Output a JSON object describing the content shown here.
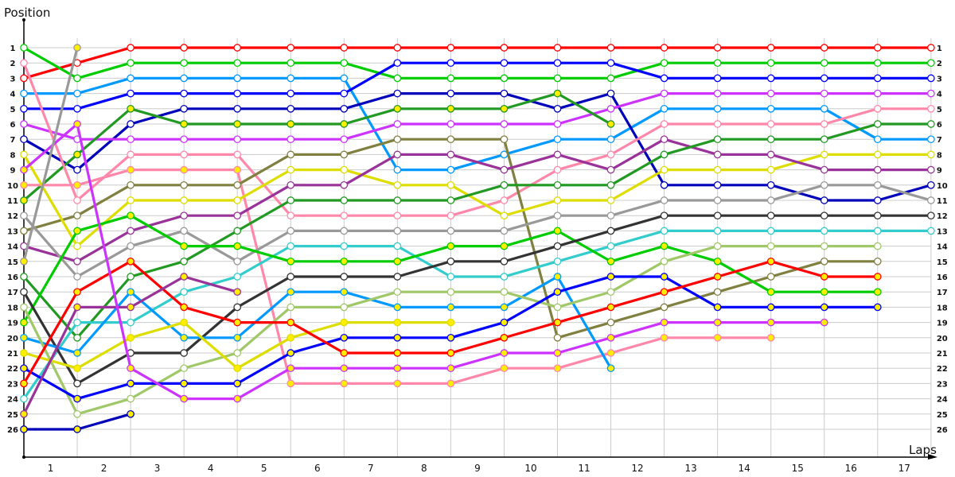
{
  "chart_data": {
    "type": "line",
    "title": "",
    "ylabel": "Position",
    "xlabel": "Laps",
    "x_tick_labels": [
      "1",
      "2",
      "3",
      "4",
      "5",
      "6",
      "7",
      "8",
      "9",
      "10",
      "11",
      "12",
      "13",
      "14",
      "15",
      "16",
      "17"
    ],
    "y_tick_labels": [
      "1",
      "2",
      "3",
      "4",
      "5",
      "6",
      "7",
      "8",
      "9",
      "10",
      "11",
      "12",
      "13",
      "14",
      "15",
      "16",
      "17",
      "18",
      "19",
      "20",
      "21",
      "22",
      "23",
      "24",
      "25",
      "26"
    ],
    "ylim": [
      1,
      26
    ],
    "y_inverted": true,
    "grid": true,
    "legend": "none",
    "x": [
      0,
      1,
      2,
      3,
      4,
      5,
      6,
      7,
      8,
      9,
      10,
      11,
      12,
      13,
      14,
      15,
      16,
      17
    ],
    "series": [
      {
        "name": "red-a",
        "color": "#ff0000",
        "values": [
          3,
          2,
          1,
          1,
          1,
          1,
          1,
          1,
          1,
          1,
          1,
          1,
          1,
          1,
          1,
          1,
          1,
          1
        ],
        "pit": []
      },
      {
        "name": "green-a",
        "color": "#00cc00",
        "values": [
          1,
          3,
          2,
          2,
          2,
          2,
          2,
          3,
          3,
          3,
          3,
          3,
          2,
          2,
          2,
          2,
          2,
          2
        ],
        "pit": []
      },
      {
        "name": "lightblue-a",
        "color": "#0099ff",
        "values": [
          4,
          4,
          3,
          3,
          3,
          3,
          3,
          9,
          9,
          8,
          7,
          7,
          5,
          5,
          5,
          5,
          7,
          7
        ],
        "pit": []
      },
      {
        "name": "blue-a",
        "color": "#0000ff",
        "values": [
          5,
          5,
          4,
          4,
          4,
          4,
          4,
          2,
          2,
          2,
          2,
          2,
          3,
          3,
          3,
          3,
          3,
          3
        ],
        "pit": []
      },
      {
        "name": "navy-a",
        "color": "#0000bb",
        "values": [
          7,
          9,
          6,
          5,
          5,
          5,
          5,
          4,
          4,
          4,
          5,
          4,
          10,
          10,
          10,
          11,
          11,
          10
        ],
        "pit": []
      },
      {
        "name": "violet-a",
        "color": "#cc33ff",
        "values": [
          6,
          7,
          7,
          7,
          7,
          7,
          7,
          6,
          6,
          6,
          6,
          5,
          4,
          4,
          4,
          4,
          4,
          4
        ],
        "pit": []
      },
      {
        "name": "darkgreen-a",
        "color": "#229922",
        "values": [
          11,
          8,
          5,
          6,
          6,
          6,
          6,
          5,
          5,
          5,
          4,
          6,
          null,
          null,
          null,
          null,
          null,
          null
        ],
        "pit": [
          0,
          1,
          2,
          3,
          4,
          5,
          6,
          7,
          8,
          9,
          10,
          11
        ]
      },
      {
        "name": "pink-a",
        "color": "#ff88aa",
        "values": [
          2,
          11,
          8,
          8,
          8,
          12,
          12,
          12,
          12,
          11,
          9,
          8,
          6,
          6,
          6,
          6,
          5,
          5
        ],
        "pit": []
      },
      {
        "name": "pink-b",
        "color": "#ff88aa",
        "values": [
          10,
          10,
          9,
          9,
          9,
          23,
          23,
          23,
          23,
          22,
          22,
          21,
          20,
          20,
          20,
          null,
          null,
          null
        ],
        "pit": [
          0,
          1,
          2,
          3,
          4,
          5,
          6,
          7,
          8,
          9,
          10,
          11,
          12,
          13,
          14
        ]
      },
      {
        "name": "olive",
        "color": "#808040",
        "values": [
          13,
          12,
          10,
          10,
          10,
          8,
          8,
          7,
          7,
          7,
          20,
          19,
          18,
          17,
          16,
          15,
          15,
          null
        ],
        "pit": []
      },
      {
        "name": "yellow-a",
        "color": "#dddd00",
        "values": [
          8,
          14,
          11,
          11,
          11,
          9,
          9,
          10,
          10,
          12,
          11,
          11,
          9,
          9,
          9,
          8,
          8,
          8
        ],
        "pit": []
      },
      {
        "name": "plum-a",
        "color": "#993399",
        "values": [
          14,
          15,
          13,
          12,
          12,
          10,
          10,
          8,
          8,
          9,
          8,
          9,
          7,
          8,
          8,
          9,
          9,
          9
        ],
        "pit": []
      },
      {
        "name": "darkgreen-b",
        "color": "#229922",
        "values": [
          16,
          20,
          16,
          15,
          13,
          11,
          11,
          11,
          11,
          10,
          10,
          10,
          8,
          7,
          7,
          7,
          6,
          6
        ],
        "pit": []
      },
      {
        "name": "gray-a",
        "color": "#999999",
        "values": [
          12,
          16,
          14,
          13,
          15,
          13,
          13,
          13,
          13,
          13,
          12,
          12,
          11,
          11,
          11,
          10,
          10,
          11
        ],
        "pit": []
      },
      {
        "name": "cyan",
        "color": "#33cccc",
        "values": [
          24,
          19,
          19,
          17,
          16,
          14,
          14,
          14,
          16,
          16,
          15,
          14,
          13,
          13,
          13,
          13,
          13,
          13
        ],
        "pit": []
      },
      {
        "name": "green-b",
        "color": "#00cc00",
        "values": [
          19,
          13,
          12,
          14,
          14,
          15,
          15,
          15,
          14,
          14,
          13,
          15,
          14,
          15,
          17,
          17,
          17,
          null
        ],
        "pit": [
          0,
          1,
          2,
          3,
          4,
          5,
          6,
          7,
          8,
          9,
          10,
          11,
          12,
          13,
          14,
          15,
          16
        ]
      },
      {
        "name": "charcoal",
        "color": "#333333",
        "values": [
          17,
          23,
          21,
          21,
          18,
          16,
          16,
          16,
          15,
          15,
          14,
          13,
          12,
          12,
          12,
          12,
          12,
          12
        ],
        "pit": []
      },
      {
        "name": "lightblue-b",
        "color": "#0099ff",
        "values": [
          20,
          21,
          17,
          20,
          20,
          17,
          17,
          18,
          18,
          18,
          16,
          22,
          null,
          null,
          null,
          null,
          null,
          null
        ],
        "pit": [
          0,
          1,
          2,
          3,
          4,
          5,
          6,
          7,
          8,
          9,
          10,
          11
        ]
      },
      {
        "name": "sage",
        "color": "#a0c868",
        "values": [
          18,
          25,
          24,
          22,
          21,
          18,
          18,
          17,
          17,
          17,
          18,
          17,
          15,
          14,
          14,
          14,
          14,
          null
        ],
        "pit": []
      },
      {
        "name": "yellow-b",
        "color": "#dddd00",
        "values": [
          21,
          22,
          20,
          19,
          22,
          20,
          19,
          19,
          19,
          null,
          null,
          null,
          null,
          null,
          null,
          null,
          null,
          null
        ],
        "pit": [
          0,
          1,
          2,
          3,
          4,
          5,
          6,
          7,
          8
        ]
      },
      {
        "name": "blue-b",
        "color": "#0000ff",
        "values": [
          22,
          24,
          23,
          23,
          23,
          21,
          20,
          20,
          20,
          19,
          17,
          16,
          16,
          18,
          18,
          18,
          18,
          null
        ],
        "pit": [
          0,
          1,
          2,
          3,
          4,
          5,
          6,
          7,
          8,
          9,
          10,
          11,
          12,
          13,
          14,
          15,
          16
        ]
      },
      {
        "name": "red-b",
        "color": "#ff0000",
        "values": [
          23,
          17,
          15,
          18,
          19,
          19,
          21,
          21,
          21,
          20,
          19,
          18,
          17,
          16,
          15,
          16,
          16,
          null
        ],
        "pit": [
          0,
          1,
          2,
          3,
          4,
          5,
          6,
          7,
          8,
          9,
          10,
          11,
          12,
          13,
          14,
          15,
          16
        ]
      },
      {
        "name": "plum-b",
        "color": "#993399",
        "values": [
          25,
          18,
          18,
          16,
          17,
          null,
          null,
          null,
          null,
          null,
          null,
          null,
          null,
          null,
          null,
          null,
          null,
          null
        ],
        "pit": [
          0,
          1,
          2,
          3,
          4
        ]
      },
      {
        "name": "violet-b",
        "color": "#cc33ff",
        "values": [
          9,
          6,
          22,
          24,
          24,
          22,
          22,
          22,
          22,
          21,
          21,
          20,
          19,
          19,
          19,
          19,
          null,
          null
        ],
        "pit": [
          0,
          1,
          2,
          3,
          4,
          5,
          6,
          7,
          8,
          9,
          10,
          11,
          12,
          13,
          14,
          15
        ]
      },
      {
        "name": "navy-b",
        "color": "#0000bb",
        "values": [
          26,
          26,
          25,
          null,
          null,
          null,
          null,
          null,
          null,
          null,
          null,
          null,
          null,
          null,
          null,
          null,
          null,
          null
        ],
        "pit": [
          0,
          1,
          2
        ]
      },
      {
        "name": "gray-b",
        "color": "#999999",
        "values": [
          15,
          1,
          null,
          null,
          null,
          null,
          null,
          null,
          null,
          null,
          null,
          null,
          null,
          null,
          null,
          null,
          null,
          null
        ],
        "pit": [
          0,
          1
        ]
      }
    ]
  },
  "axis": {
    "y_title": "Position",
    "x_title": "Laps"
  },
  "colors": {
    "grid": "#cccccc",
    "axis": "#000000",
    "pit_marker_fill": "#ffee00",
    "normal_marker_fill": "#ffffff"
  }
}
